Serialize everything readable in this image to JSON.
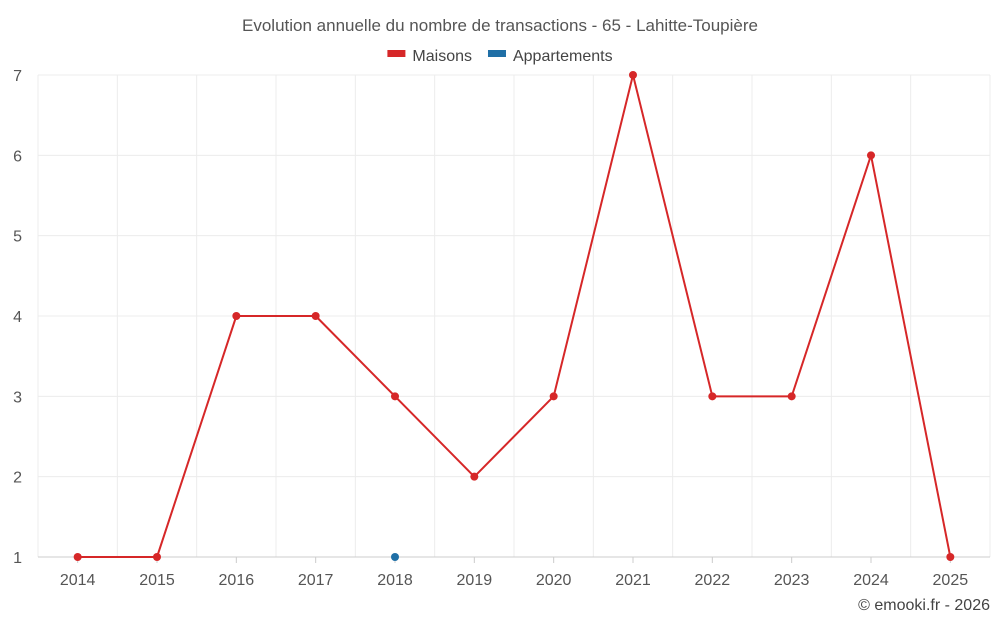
{
  "chart_data": {
    "type": "line",
    "title": "Evolution annuelle du nombre de transactions - 65 - Lahitte-Toupière",
    "categories": [
      "2014",
      "2015",
      "2016",
      "2017",
      "2018",
      "2019",
      "2020",
      "2021",
      "2022",
      "2023",
      "2024",
      "2025"
    ],
    "ylim": [
      1,
      7
    ],
    "yticks": [
      1,
      2,
      3,
      4,
      5,
      6,
      7
    ],
    "grid": true,
    "legend_position": "top-center",
    "series": [
      {
        "name": "Maisons",
        "color": "#d62728",
        "values": [
          1,
          1,
          4,
          4,
          3,
          2,
          3,
          7,
          3,
          3,
          6,
          1
        ]
      },
      {
        "name": "Appartements",
        "color": "#1f6fa6",
        "values": [
          null,
          null,
          null,
          null,
          1,
          null,
          null,
          null,
          null,
          null,
          null,
          null
        ]
      }
    ],
    "credit": "© emooki.fr - 2026"
  }
}
